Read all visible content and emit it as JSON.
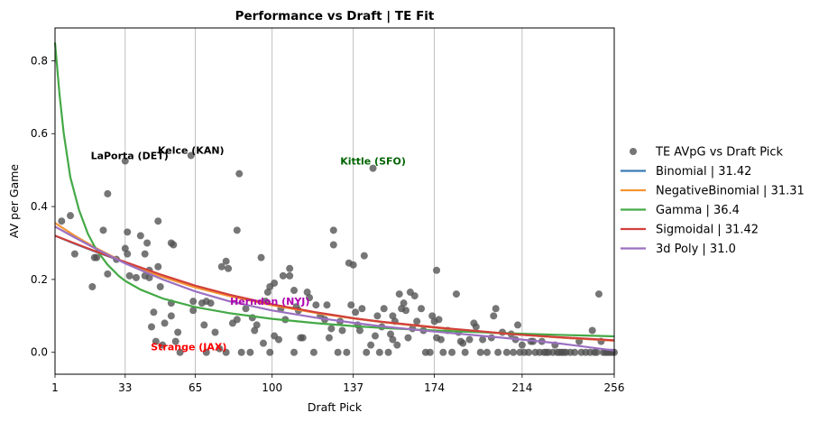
{
  "chart_data": {
    "type": "scatter",
    "title": "Performance vs Draft | TE Fit",
    "xlabel": "Draft Pick",
    "ylabel": "AV per Game",
    "xlim": [
      1,
      256
    ],
    "ylim": [
      -0.06,
      0.89
    ],
    "x_ticks": [
      1,
      33,
      65,
      100,
      137,
      174,
      214,
      256
    ],
    "y_ticks": [
      0.0,
      0.2,
      0.4,
      0.6,
      0.8
    ],
    "y_tick_labels": [
      "0.0",
      "0.2",
      "0.4",
      "0.6",
      "0.8"
    ],
    "grid": "vertical lines at x ticks",
    "legend_position": "right, outside plot",
    "scatter": {
      "name": "TE AVpG vs Draft Pick",
      "color": "#505050",
      "points": [
        [
          4,
          0.36
        ],
        [
          8,
          0.375
        ],
        [
          10,
          0.27
        ],
        [
          18,
          0.18
        ],
        [
          19,
          0.26
        ],
        [
          20,
          0.26
        ],
        [
          23,
          0.335
        ],
        [
          25,
          0.435
        ],
        [
          25,
          0.215
        ],
        [
          29,
          0.255
        ],
        [
          33,
          0.525
        ],
        [
          33,
          0.285
        ],
        [
          34,
          0.33
        ],
        [
          34,
          0.27
        ],
        [
          35,
          0.21
        ],
        [
          38,
          0.205
        ],
        [
          40,
          0.32
        ],
        [
          42,
          0.21
        ],
        [
          42,
          0.27
        ],
        [
          43,
          0.3
        ],
        [
          44,
          0.225
        ],
        [
          44,
          0.205
        ],
        [
          45,
          0.07
        ],
        [
          46,
          0.11
        ],
        [
          47,
          0.03
        ],
        [
          48,
          0.235
        ],
        [
          48,
          0.36
        ],
        [
          49,
          0.18
        ],
        [
          50,
          0.02
        ],
        [
          51,
          0.08
        ],
        [
          54,
          0.1
        ],
        [
          54,
          0.135
        ],
        [
          54,
          0.3
        ],
        [
          55,
          0.295
        ],
        [
          56,
          0.03
        ],
        [
          57,
          0.055
        ],
        [
          58,
          0.0
        ],
        [
          63,
          0.54
        ],
        [
          64,
          0.115
        ],
        [
          64,
          0.14
        ],
        [
          68,
          0.135
        ],
        [
          69,
          0.075
        ],
        [
          70,
          0.14
        ],
        [
          70,
          0.0
        ],
        [
          72,
          0.135
        ],
        [
          74,
          0.055
        ],
        [
          76,
          0.01
        ],
        [
          77,
          0.235
        ],
        [
          79,
          0.25
        ],
        [
          79,
          0.0
        ],
        [
          80,
          0.23
        ],
        [
          82,
          0.08
        ],
        [
          84,
          0.09
        ],
        [
          84,
          0.335
        ],
        [
          85,
          0.49
        ],
        [
          86,
          0.0
        ],
        [
          88,
          0.12
        ],
        [
          90,
          0.0
        ],
        [
          91,
          0.095
        ],
        [
          92,
          0.06
        ],
        [
          93,
          0.075
        ],
        [
          95,
          0.26
        ],
        [
          96,
          0.025
        ],
        [
          97,
          0.14
        ],
        [
          98,
          0.165
        ],
        [
          99,
          0.18
        ],
        [
          99,
          0.0
        ],
        [
          101,
          0.19
        ],
        [
          101,
          0.045
        ],
        [
          103,
          0.035
        ],
        [
          104,
          0.12
        ],
        [
          105,
          0.21
        ],
        [
          106,
          0.09
        ],
        [
          108,
          0.23
        ],
        [
          108,
          0.21
        ],
        [
          110,
          0.0
        ],
        [
          110,
          0.17
        ],
        [
          111,
          0.125
        ],
        [
          112,
          0.115
        ],
        [
          113,
          0.04
        ],
        [
          114,
          0.04
        ],
        [
          116,
          0.165
        ],
        [
          117,
          0.15
        ],
        [
          119,
          0.0
        ],
        [
          120,
          0.13
        ],
        [
          122,
          0.1
        ],
        [
          124,
          0.09
        ],
        [
          125,
          0.13
        ],
        [
          126,
          0.04
        ],
        [
          127,
          0.065
        ],
        [
          128,
          0.335
        ],
        [
          128,
          0.295
        ],
        [
          130,
          0.0
        ],
        [
          131,
          0.085
        ],
        [
          132,
          0.06
        ],
        [
          134,
          0.0
        ],
        [
          135,
          0.245
        ],
        [
          136,
          0.13
        ],
        [
          137,
          0.24
        ],
        [
          138,
          0.11
        ],
        [
          139,
          0.075
        ],
        [
          140,
          0.06
        ],
        [
          141,
          0.12
        ],
        [
          142,
          0.265
        ],
        [
          143,
          0.0
        ],
        [
          145,
          0.02
        ],
        [
          146,
          0.505
        ],
        [
          147,
          0.045
        ],
        [
          148,
          0.1
        ],
        [
          149,
          0.0
        ],
        [
          150,
          0.07
        ],
        [
          151,
          0.12
        ],
        [
          153,
          0.0
        ],
        [
          154,
          0.05
        ],
        [
          155,
          0.1
        ],
        [
          155,
          0.035
        ],
        [
          156,
          0.085
        ],
        [
          157,
          0.02
        ],
        [
          158,
          0.16
        ],
        [
          159,
          0.12
        ],
        [
          160,
          0.135
        ],
        [
          161,
          0.115
        ],
        [
          162,
          0.04
        ],
        [
          163,
          0.165
        ],
        [
          164,
          0.065
        ],
        [
          165,
          0.155
        ],
        [
          166,
          0.085
        ],
        [
          168,
          0.12
        ],
        [
          169,
          0.06
        ],
        [
          170,
          0.0
        ],
        [
          172,
          0.0
        ],
        [
          173,
          0.1
        ],
        [
          174,
          0.085
        ],
        [
          175,
          0.225
        ],
        [
          175,
          0.04
        ],
        [
          176,
          0.09
        ],
        [
          177,
          0.035
        ],
        [
          178,
          0.0
        ],
        [
          180,
          0.06
        ],
        [
          182,
          0.0
        ],
        [
          184,
          0.16
        ],
        [
          185,
          0.055
        ],
        [
          186,
          0.03
        ],
        [
          187,
          0.025
        ],
        [
          188,
          0.0
        ],
        [
          190,
          0.035
        ],
        [
          192,
          0.08
        ],
        [
          193,
          0.07
        ],
        [
          195,
          0.0
        ],
        [
          196,
          0.035
        ],
        [
          198,
          0.0
        ],
        [
          200,
          0.04
        ],
        [
          201,
          0.1
        ],
        [
          202,
          0.12
        ],
        [
          203,
          0.0
        ],
        [
          205,
          0.055
        ],
        [
          207,
          0.0
        ],
        [
          209,
          0.05
        ],
        [
          210,
          0.0
        ],
        [
          211,
          0.035
        ],
        [
          212,
          0.075
        ],
        [
          213,
          0.0
        ],
        [
          214,
          0.02
        ],
        [
          215,
          0.0
        ],
        [
          217,
          0.0
        ],
        [
          218,
          0.03
        ],
        [
          219,
          0.03
        ],
        [
          220,
          0.0
        ],
        [
          222,
          0.0
        ],
        [
          223,
          0.03
        ],
        [
          224,
          0.0
        ],
        [
          225,
          0.0
        ],
        [
          226,
          0.0
        ],
        [
          228,
          0.0
        ],
        [
          229,
          0.02
        ],
        [
          230,
          0.0
        ],
        [
          231,
          0.0
        ],
        [
          232,
          0.0
        ],
        [
          233,
          0.0
        ],
        [
          234,
          0.0
        ],
        [
          236,
          0.0
        ],
        [
          238,
          0.0
        ],
        [
          240,
          0.03
        ],
        [
          241,
          0.0
        ],
        [
          243,
          0.0
        ],
        [
          245,
          0.0
        ],
        [
          246,
          0.06
        ],
        [
          247,
          0.0
        ],
        [
          248,
          0.0
        ],
        [
          249,
          0.16
        ],
        [
          250,
          0.03
        ],
        [
          251,
          0.0
        ],
        [
          252,
          0.0
        ],
        [
          253,
          0.0
        ],
        [
          254,
          0.0
        ],
        [
          255,
          0.0
        ],
        [
          256,
          0.0
        ]
      ]
    },
    "series": [
      {
        "name": "Binomial | 31.42",
        "color": "#3a7ab3",
        "x": [
          1,
          10,
          20,
          33,
          50,
          65,
          80,
          100,
          120,
          137,
          150,
          174,
          200,
          214,
          230,
          256
        ],
        "y": [
          0.32,
          0.298,
          0.275,
          0.247,
          0.211,
          0.182,
          0.158,
          0.131,
          0.109,
          0.093,
          0.083,
          0.068,
          0.054,
          0.048,
          0.041,
          0.032
        ]
      },
      {
        "name": "NegativeBinomial | 31.31",
        "color": "#f59535",
        "x": [
          1,
          10,
          20,
          33,
          50,
          65,
          80,
          100,
          120,
          137,
          150,
          174,
          200,
          214,
          230,
          256
        ],
        "y": [
          0.355,
          0.32,
          0.285,
          0.245,
          0.207,
          0.178,
          0.155,
          0.129,
          0.108,
          0.093,
          0.083,
          0.068,
          0.054,
          0.048,
          0.041,
          0.032
        ]
      },
      {
        "name": "Gamma | 36.4",
        "color": "#44a946",
        "x": [
          1,
          3,
          5,
          8,
          12,
          16,
          20,
          25,
          30,
          33,
          40,
          50,
          65,
          80,
          100,
          120,
          137,
          150,
          174,
          200,
          214,
          230,
          256
        ],
        "y": [
          0.85,
          0.71,
          0.6,
          0.48,
          0.39,
          0.325,
          0.28,
          0.24,
          0.21,
          0.196,
          0.172,
          0.148,
          0.124,
          0.108,
          0.092,
          0.08,
          0.072,
          0.067,
          0.06,
          0.054,
          0.051,
          0.048,
          0.044
        ]
      },
      {
        "name": "Sigmoidal | 31.42",
        "color": "#d13f3a",
        "x": [
          1,
          10,
          20,
          33,
          50,
          65,
          80,
          100,
          120,
          137,
          150,
          174,
          200,
          214,
          230,
          256
        ],
        "y": [
          0.32,
          0.299,
          0.276,
          0.248,
          0.212,
          0.183,
          0.159,
          0.132,
          0.11,
          0.094,
          0.084,
          0.069,
          0.055,
          0.048,
          0.042,
          0.033
        ]
      },
      {
        "name": "3d Poly | 31.0",
        "color": "#9a70c0",
        "x": [
          1,
          10,
          20,
          33,
          50,
          65,
          80,
          100,
          120,
          137,
          150,
          174,
          200,
          214,
          230,
          256
        ],
        "y": [
          0.345,
          0.315,
          0.283,
          0.244,
          0.2,
          0.167,
          0.141,
          0.115,
          0.095,
          0.081,
          0.071,
          0.057,
          0.043,
          0.035,
          0.025,
          0.005
        ]
      }
    ],
    "annotations": [
      {
        "text": "LaPorta (DET)",
        "x": 35,
        "y": 0.53,
        "color": "#000000"
      },
      {
        "text": "Kelce (KAN)",
        "x": 63,
        "y": 0.545,
        "color": "#000000"
      },
      {
        "text": "Kittle (SFO)",
        "x": 146,
        "y": 0.515,
        "color": "#006400"
      },
      {
        "text": "Herndon (NYJ)",
        "x": 99,
        "y": 0.13,
        "color": "#b000b0"
      },
      {
        "text": "Strange (JAX)",
        "x": 62,
        "y": 0.005,
        "color": "#ff0000"
      }
    ]
  }
}
